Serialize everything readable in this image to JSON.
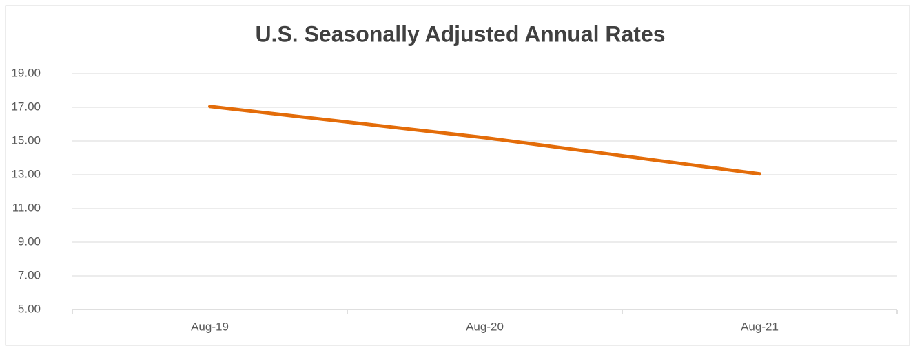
{
  "chart_data": {
    "type": "line",
    "title": "U.S. Seasonally Adjusted Annual Rates",
    "categories": [
      "Aug-19",
      "Aug-20",
      "Aug-21"
    ],
    "series": [
      {
        "name": "U.S. Seasonally Adjusted Annual Rates",
        "color": "#e36c09",
        "values": [
          17.05,
          15.2,
          13.05
        ]
      }
    ],
    "ylim": [
      5,
      19
    ],
    "yticks": [
      {
        "value": 5,
        "label": "5.00"
      },
      {
        "value": 7,
        "label": "7.00"
      },
      {
        "value": 9,
        "label": "9.00"
      },
      {
        "value": 11,
        "label": "11.00"
      },
      {
        "value": 13,
        "label": "13.00"
      },
      {
        "value": 15,
        "label": "15.00"
      },
      {
        "value": 17,
        "label": "17.00"
      },
      {
        "value": 19,
        "label": "19.00"
      }
    ],
    "grid": true
  }
}
